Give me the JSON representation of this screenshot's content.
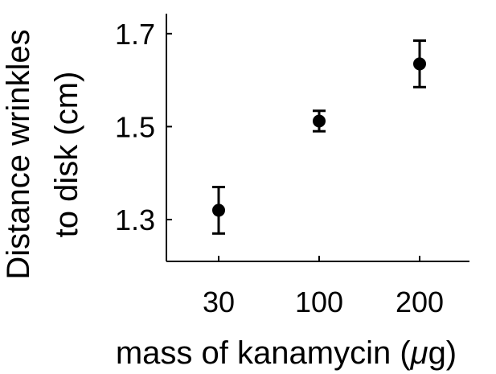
{
  "chart_data": {
    "type": "scatter",
    "title": "",
    "xlabel_prefix": "mass of kanamycin (",
    "xlabel_symbol": "μ",
    "xlabel_suffix": "g)",
    "ylabel_line1": "Distance wrinkles",
    "ylabel_line2": "to disk (cm)",
    "categories": [
      "30",
      "100",
      "200"
    ],
    "values": [
      1.32,
      1.512,
      1.635
    ],
    "errors": [
      0.05,
      0.022,
      0.05
    ],
    "ylim": [
      1.21,
      1.743
    ],
    "yticks": [
      1.3,
      1.5,
      1.7
    ],
    "ytick_labels": [
      "1.3",
      "1.5",
      "1.7"
    ],
    "grid": false,
    "marker_color": "#000000"
  }
}
